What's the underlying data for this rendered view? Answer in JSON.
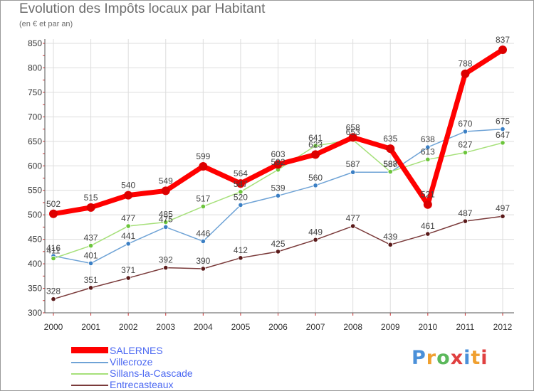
{
  "title": "Evolution des Impôts locaux par Habitant",
  "subtitle": "(en € et par an)",
  "logo": {
    "text": "Proxiti",
    "letters": [
      "P",
      "r",
      "o",
      "x",
      "i",
      "t",
      "i"
    ],
    "colors": [
      "#4a90d9",
      "#f0a030",
      "#5bb85b",
      "#e04040",
      "#4a90d9",
      "#f0a030",
      "#e04040"
    ]
  },
  "chart_data": {
    "type": "line",
    "title": "Evolution des Impôts locaux par Habitant",
    "subtitle": "(en € et par an)",
    "xlabel": "",
    "ylabel": "",
    "ylim": [
      300,
      850
    ],
    "yticks": [
      300,
      350,
      400,
      450,
      500,
      550,
      600,
      650,
      700,
      750,
      800,
      850
    ],
    "categories": [
      "2000",
      "2001",
      "2002",
      "2003",
      "2004",
      "2005",
      "2006",
      "2007",
      "2008",
      "2009",
      "2010",
      "2011",
      "2012"
    ],
    "series": [
      {
        "name": "SALERNES",
        "color": "#ff0000",
        "markerColor": "#dd0000",
        "width": 7,
        "marker": 6,
        "values": [
          502,
          515,
          540,
          549,
          599,
          564,
          603,
          623,
          658,
          635,
          521,
          788,
          837
        ],
        "labels": [
          "502",
          "515",
          "540",
          "549",
          "599",
          "564",
          "603",
          "623",
          "658",
          "635",
          "521",
          "788",
          "837"
        ]
      },
      {
        "name": "Villecroze",
        "color": "#6fa3d6",
        "markerColor": "#3b7fc4",
        "width": 1.5,
        "marker": 3.2,
        "values": [
          416,
          401,
          441,
          475,
          446,
          520,
          539,
          560,
          587,
          587,
          638,
          670,
          675
        ],
        "labels": [
          "416",
          "401",
          "441",
          "475",
          "446",
          "520",
          "539",
          "560",
          "587",
          "587",
          "638",
          "670",
          "675"
        ]
      },
      {
        "name": "Sillans-la-Cascade",
        "color": "#a6e07a",
        "markerColor": "#6cc53c",
        "width": 1.5,
        "marker": 3.2,
        "values": [
          411,
          437,
          477,
          485,
          517,
          547,
          592,
          641,
          653,
          588,
          613,
          627,
          647
        ],
        "labels": [
          "411",
          "437",
          "477",
          "485",
          "517",
          "547",
          "592",
          "641",
          "653",
          "588",
          "613",
          "627",
          "647"
        ]
      },
      {
        "name": "Entrecasteaux",
        "color": "#7a3a3a",
        "markerColor": "#5a1a1a",
        "width": 1.5,
        "marker": 3.2,
        "values": [
          328,
          351,
          371,
          392,
          390,
          412,
          425,
          449,
          477,
          439,
          461,
          487,
          497
        ],
        "labels": [
          "328",
          "351",
          "371",
          "392",
          "390",
          "412",
          "425",
          "449",
          "477",
          "439",
          "461",
          "487",
          "497"
        ]
      }
    ],
    "grid": true,
    "legend_position": "bottom-left"
  }
}
